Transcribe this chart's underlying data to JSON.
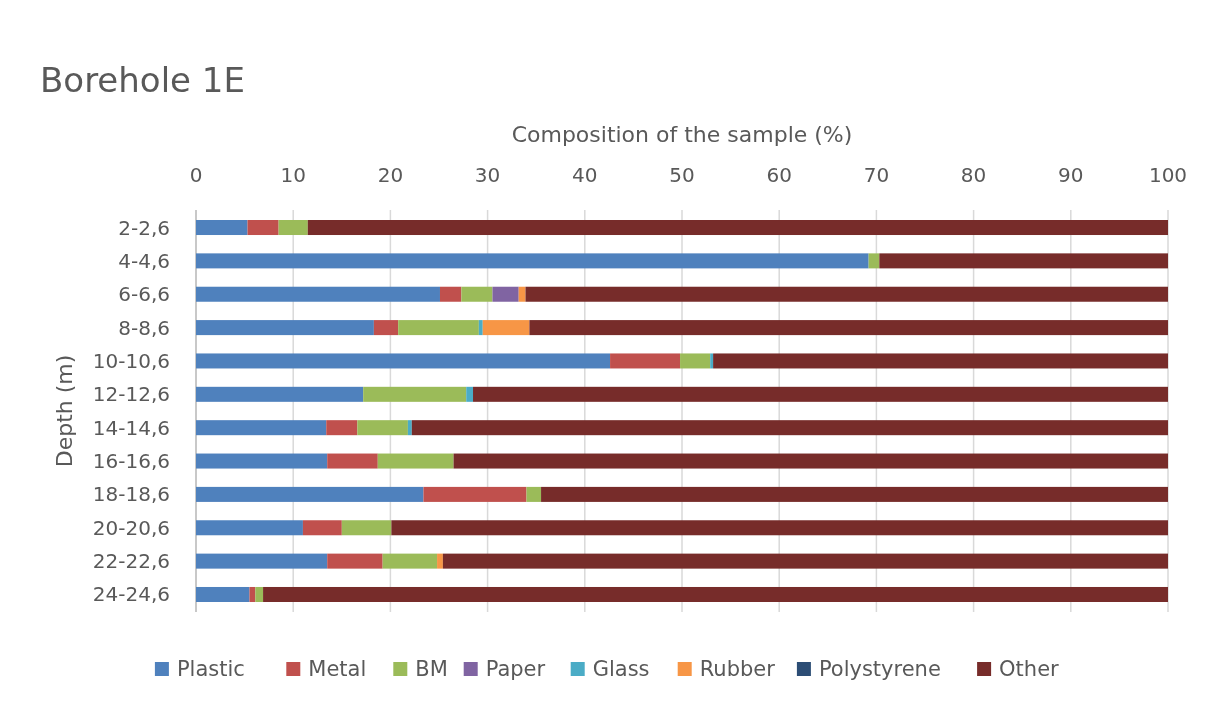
{
  "chart_data": {
    "type": "bar",
    "orientation": "horizontal",
    "stacked": true,
    "title": "Borehole 1E",
    "xlabel": "Composition of the sample (%)",
    "ylabel": "Depth (m)",
    "categories": [
      "2-2,6",
      "4-4,6",
      "6-6,6",
      "8-8,6",
      "10-10,6",
      "12-12,6",
      "14-14,6",
      "16-16,6",
      "18-18,6",
      "20-20,6",
      "22-22,6",
      "24-24,6"
    ],
    "xlim": [
      0,
      100
    ],
    "xticks": [
      0,
      10,
      20,
      30,
      40,
      50,
      60,
      70,
      80,
      90,
      100
    ],
    "grid": "x",
    "legend": "bottom",
    "series": [
      {
        "name": "Plastic",
        "color": "#4f81bd",
        "values": [
          5.3,
          69.2,
          25.1,
          18.3,
          42.6,
          17.2,
          13.4,
          13.5,
          23.4,
          11.0,
          13.5,
          5.5
        ]
      },
      {
        "name": "Metal",
        "color": "#c0504d",
        "values": [
          3.2,
          0,
          2.2,
          2.5,
          7.2,
          0,
          3.2,
          5.2,
          10.6,
          4.0,
          5.7,
          0.6
        ]
      },
      {
        "name": "BM",
        "color": "#9bbb59",
        "values": [
          3.0,
          1.1,
          3.2,
          8.3,
          3.1,
          10.6,
          5.2,
          7.8,
          1.5,
          5.1,
          5.6,
          0.8
        ]
      },
      {
        "name": "Paper",
        "color": "#8064a2",
        "values": [
          0,
          0,
          2.7,
          0,
          0,
          0,
          0,
          0,
          0,
          0,
          0,
          0
        ]
      },
      {
        "name": "Glass",
        "color": "#4bacc6",
        "values": [
          0,
          0,
          0,
          0.4,
          0.3,
          0.7,
          0.4,
          0,
          0,
          0,
          0,
          0
        ]
      },
      {
        "name": "Rubber",
        "color": "#f79646",
        "values": [
          0,
          0,
          0.7,
          4.8,
          0,
          0,
          0,
          0,
          0,
          0,
          0.6,
          0
        ]
      },
      {
        "name": "Polystyrene",
        "color": "#2c4d75",
        "values": [
          0,
          0,
          0,
          0,
          0,
          0,
          0,
          0,
          0,
          0,
          0,
          0
        ]
      },
      {
        "name": "Other",
        "color": "#772c2a",
        "values": [
          88.5,
          29.7,
          66.1,
          65.7,
          46.8,
          71.5,
          77.8,
          73.5,
          64.5,
          79.9,
          74.6,
          93.1
        ]
      }
    ]
  }
}
